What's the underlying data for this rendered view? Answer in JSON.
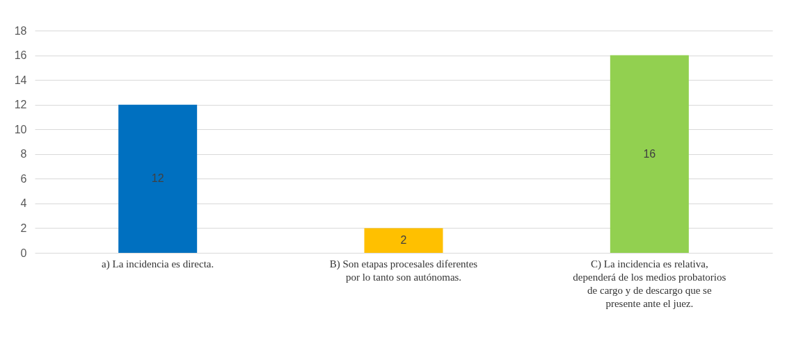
{
  "chart_data": {
    "type": "bar",
    "categories": [
      "a) La incidencia es directa.",
      "B) Son etapas procesales diferentes por lo tanto son autónomas.",
      "C) La incidencia es relativa, dependerá de los medios probatorios de cargo y de descargo que se presente ante el juez."
    ],
    "values": [
      12,
      2,
      16
    ],
    "colors": [
      "#0070c0",
      "#ffc000",
      "#92d050"
    ],
    "ylim": [
      0,
      18
    ],
    "yticks": [
      0,
      2,
      4,
      6,
      8,
      10,
      12,
      14,
      16,
      18
    ],
    "grid": "y",
    "data_labels": true
  }
}
